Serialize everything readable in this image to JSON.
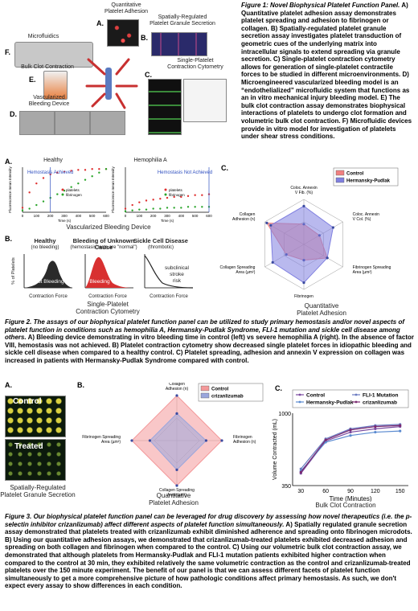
{
  "fig1": {
    "top_label": "Quantitative\nPlatelet Adhesion",
    "platelet_granule": "Spatially-Regulated\nPlatelet Granule Secretion",
    "microfluidics": "Microfluidics",
    "bulk_clot": "Bulk Clot Contraction",
    "vascularized": "Vascularized\nBleeding Device",
    "single_platelet": "Single-Platelet\nContraction Cytometry",
    "panel_letters": [
      "A.",
      "B.",
      "C.",
      "D.",
      "E.",
      "F."
    ],
    "caption_title": "Figure 1: Novel Biophysical Platelet Function Panel.",
    "caption_body": "A) Quantitative platelet adhesion assay demonstrates platelet spreading and adhesion to fibrinogen or collagen. B) Spatially-regulated platelet granule secretion assay investigates platelet transduction of geometric cues of the underlying matrix into intracellular signals to extend spreading via granule secretion. C) Single-platelet contraction cytometry allows for generation of single-platelet contractile forces to be studied in different microenvironments. D) Microengineered vascularized bleeding model is an “endothelialized” microfluidic system that functions as an in vitro mechanical injury bleeding model. E) The bulk clot contraction assay demonstrates biophysical interactions of platelets to undergo clot formation and volumetric bulk clot contraction. F) Microfluidic devices provide in vitro model for investigation of platelets under shear stress conditions."
  },
  "fig2": {
    "healthy_title": "Healthy",
    "hemo_title": "Hemophilia A",
    "hemo_achieved": "Hemostasis Achieved",
    "hemo_not_achieved": "Hemostasis Not Achieved",
    "ylabel": "Fluorescence mean Intensity",
    "xlabel": "Time (s)",
    "legend_platelets": "platelets",
    "legend_fibrinogen": "fibrinogen",
    "device_label": "Vascularized Bleeding Device",
    "panel_A": "A.",
    "panel_B": "B.",
    "panel_C": "C.",
    "dist_titles": [
      "Healthy",
      "Bleeding of Unknown Cause",
      "Sickle Cell Disease"
    ],
    "dist_subtitles": [
      "(no bleeding)",
      "(hemostasis tests are \"normal\")",
      "(thrombotic)"
    ],
    "dist_overlays": [
      "Not Bleeding",
      "Bleeding",
      "subclinical\nstroke\nrisk"
    ],
    "dist_ylabel": "% of Platelets",
    "dist_xlabel": "Contraction Force",
    "single_label": "Single-Platelet\nContraction Cytometry",
    "radar_legend": [
      "Control",
      "Hermansky-Pudlak"
    ],
    "radar_axes": [
      "Coloc. Annexin\nV Fib. (%)",
      "Coloc. Annexin\nV Col. (%)",
      "Fibrinogen Spreading\nArea (µm²)",
      "Fibrinogen",
      "Collagen Spreading\nArea (µm²)",
      "Collagen\nAdhesion (n)"
    ],
    "radar_label": "Quantitative\nPlatelet Adhesion",
    "caption_title": "Figure 2. The assays of our biophysical platelet function panel can be utilized to study primary hemostasis and/or novel aspects of platelet function in conditions such as hemophilia A, Hermansky-Pudlak Syndrome, FLI-1 mutation and sickle cell disease among others.",
    "caption_body": "A) Bleeding device demonstrating in vitro bleeding time in control (left) vs severe hemophilia A (right). In the absence of factor VIII, hemostasis was not achieved. B) Platelet contraction cytometry show decreased single platelet forces in idiopathic bleeding and sickle cell disease when compared to a healthy control. C) Platelet spreading, adhesion and annexin V expression on collagen was increased in patients with Hermansky-Pudlak Syndrome compared with control."
  },
  "fig3": {
    "panel_A": "A.",
    "panel_B": "B.",
    "panel_C": "C.",
    "control_label": "Control",
    "treated_label": "Treated",
    "granule_label": "Spatially-Regulated\nPlatelet Granule Secretion",
    "radar_legend": [
      "Control",
      "crizanlizumab"
    ],
    "radar_axes": [
      "Collagen\nAdhesion (n)",
      "Fibrinogen\nAdhesion (n)",
      "Collagen Spreading\nArea (µm²)",
      "Fibrinogen Spreading\nArea (µm²)"
    ],
    "radar_label": "Quantitative\nPlatelet Adhesion",
    "bulk_label": "Bulk Clot Contraction",
    "caption_title": "Figure 3. Our biophysical platelet function panel can be leveraged for drug discovery by assessing how novel therapeutics (i.e. the p-selectin inhibitor crizanlizumab) affect different aspects of platelet function simultaneously.",
    "caption_body": "A) Spatially regulated granule secretion assay demonstrated that platelets treated with crizanlizumab exhibit diminished adherence and spreading onto fibrinogen microdots. B) Using our quantitative adhesion assays, we demonstrated that crizanlizumab-treated platelets exhibited decreased adhesion and spreading on both collagen and fibrinogen when compared to the control. C) Using our volumetric bulk clot contraction assay, we demonstrated that although platelets from Hermansky-Pudlak and FLI-1 mutation patients exhibited higher contraction when compared to the control at 30 min, they exhibited relatively the same volumetric contraction as the control and crizanlizumab-treated platelets over the 150 minute experiment. The benefit of our panel is that we can assess different facets of platelet function simultaneously to get a more comprehensive picture of how pathologic conditions affect primary hemostasis. As such, we don't expect every assay to show differences in each condition."
  },
  "chart_data": [
    {
      "type": "line",
      "title": "Healthy",
      "xlabel": "Time (s)",
      "ylabel": "Fluorescence mean Intensity",
      "xlim": [
        0,
        600
      ],
      "x_ticks": [
        0,
        100,
        200,
        300,
        400,
        500,
        600
      ],
      "annotation": "Hemostasis Achieved",
      "annotation_x": 200,
      "series": [
        {
          "name": "platelets",
          "color": "#e03030",
          "x": [
            0,
            50,
            100,
            150,
            200,
            250,
            300,
            350,
            400,
            450,
            500,
            550,
            600
          ],
          "values": [
            5,
            22,
            32,
            38,
            42,
            44,
            45,
            46,
            47,
            47,
            48,
            48,
            48
          ]
        },
        {
          "name": "fibrinogen",
          "color": "#2aa52a",
          "x": [
            0,
            50,
            100,
            150,
            200,
            250,
            300,
            350,
            400,
            450,
            500,
            550,
            600
          ],
          "values": [
            2,
            4,
            8,
            12,
            16,
            20,
            24,
            28,
            32,
            36,
            40,
            44,
            48
          ]
        }
      ]
    },
    {
      "type": "line",
      "title": "Hemophilia A",
      "xlabel": "Time (s)",
      "ylabel": "Fluorescence mean Intensity",
      "xlim": [
        0,
        600
      ],
      "x_ticks": [
        0,
        100,
        200,
        300,
        400,
        500,
        600
      ],
      "annotation": "Hemostasis Not Achieved",
      "annotation_x": 600,
      "series": [
        {
          "name": "platelets",
          "color": "#e03030",
          "x": [
            0,
            50,
            100,
            150,
            200,
            250,
            300,
            350,
            400,
            450,
            500,
            550,
            600
          ],
          "values": [
            4,
            8,
            11,
            13,
            14,
            15,
            16,
            17,
            17,
            18,
            19,
            19,
            20
          ]
        },
        {
          "name": "fibrinogen",
          "color": "#2aa52a",
          "x": [
            0,
            50,
            100,
            150,
            200,
            250,
            300,
            350,
            400,
            450,
            500,
            550,
            600
          ],
          "values": [
            1,
            2,
            3,
            3,
            4,
            4,
            5,
            5,
            5,
            6,
            6,
            6,
            6
          ]
        }
      ]
    },
    {
      "type": "radar",
      "axes": [
        "Coloc. Annexin V Fib. (%)",
        "Coloc. Annexin V Col. (%)",
        "Fibrinogen Spreading Area (µm²)",
        "Fibrinogen",
        "Collagen Spreading Area (µm²)",
        "Collagen Adhesion (n)"
      ],
      "series": [
        {
          "name": "Control",
          "color": "#f08080",
          "values": [
            0.45,
            0.4,
            0.6,
            0.35,
            0.45,
            0.95
          ]
        },
        {
          "name": "Hermansky-Pudlak",
          "color": "#8080e0",
          "values": [
            0.85,
            0.75,
            0.6,
            0.85,
            0.8,
            0.85
          ]
        }
      ]
    },
    {
      "type": "radar",
      "axes": [
        "Collagen Adhesion (n)",
        "Fibrinogen Adhesion (n)",
        "Collagen Spreading Area (µm²)",
        "Fibrinogen Spreading Area (µm²)"
      ],
      "series": [
        {
          "name": "Control",
          "color": "#f4999a",
          "values": [
            1.0,
            1.0,
            1.0,
            1.0
          ]
        },
        {
          "name": "crizanlizumab",
          "color": "#9aa6dc",
          "values": [
            0.6,
            0.65,
            0.65,
            0.6
          ]
        }
      ]
    },
    {
      "type": "line",
      "title": "",
      "xlabel": "Time (Minutes)",
      "ylabel": "Volume Contracted (mL)",
      "x_ticks": [
        30,
        60,
        90,
        120,
        150
      ],
      "y_ticks": [
        350,
        1000
      ],
      "ylim": [
        350,
        1000
      ],
      "series": [
        {
          "name": "Control",
          "color": "#7a4aa0",
          "x": [
            30,
            60,
            90,
            120,
            150
          ],
          "values": [
            460,
            750,
            830,
            860,
            880
          ]
        },
        {
          "name": "FLI-1 Mutation",
          "color": "#6a7ac0",
          "x": [
            30,
            60,
            90,
            120,
            150
          ],
          "values": [
            500,
            770,
            860,
            890,
            900
          ]
        },
        {
          "name": "Hermansky-Pudlak",
          "color": "#5a8ad0",
          "x": [
            30,
            60,
            90,
            120,
            150
          ],
          "values": [
            480,
            740,
            800,
            830,
            840
          ]
        },
        {
          "name": "crizanlizumab",
          "color": "#7a2a70",
          "x": [
            30,
            60,
            90,
            120,
            150
          ],
          "values": [
            470,
            760,
            850,
            880,
            890
          ]
        }
      ]
    }
  ]
}
